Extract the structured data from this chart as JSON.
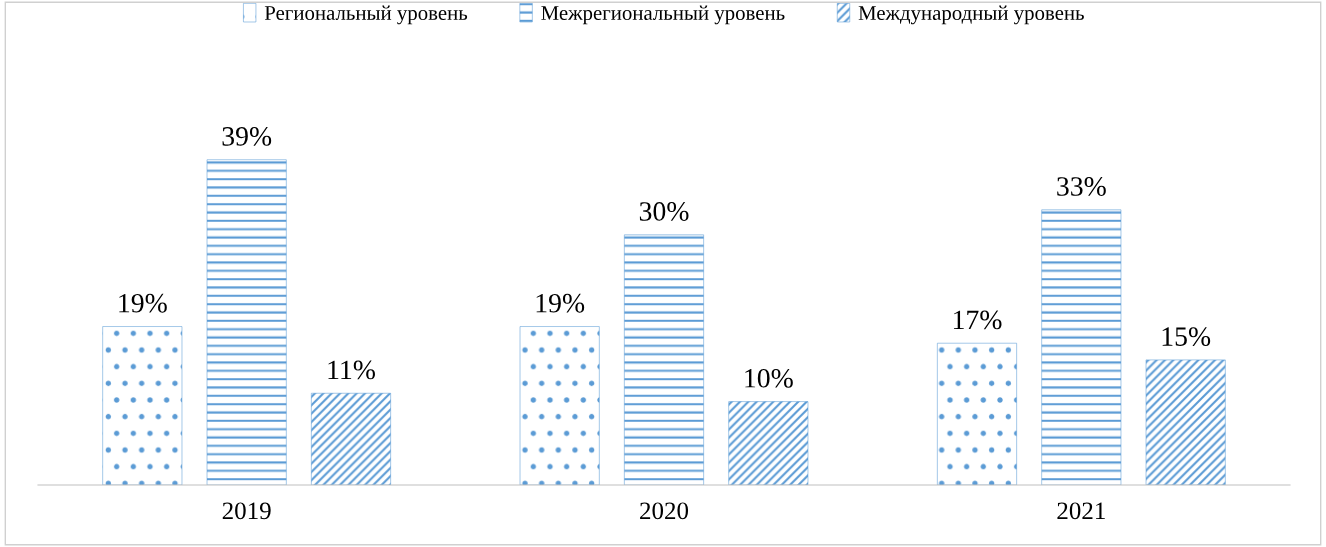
{
  "chart_data": {
    "type": "bar",
    "categories": [
      "2019",
      "2020",
      "2021"
    ],
    "series": [
      {
        "name": "Региональный уровень",
        "color": "#5b9bd5",
        "values": [
          19,
          19,
          17
        ],
        "value_labels": [
          "19%",
          "19%",
          "17%"
        ]
      },
      {
        "name": "Межрегиональный уровень",
        "color": "#5b9bd5",
        "values": [
          39,
          30,
          33
        ],
        "value_labels": [
          "39%",
          "30%",
          "33%"
        ]
      },
      {
        "name": "Международный уровень",
        "color": "#5b9bd5",
        "values": [
          11,
          10,
          15
        ],
        "value_labels": [
          "11%",
          "10%",
          "15%"
        ]
      }
    ],
    "grid": false,
    "legend": "top"
  }
}
